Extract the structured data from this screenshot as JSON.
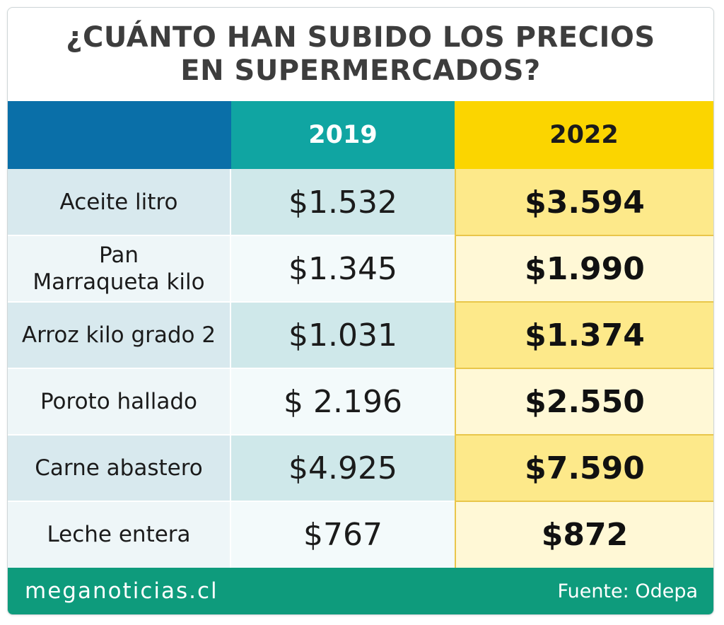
{
  "colors": {
    "header_blank": "#0a6fa8",
    "header_2019": "#10a5a2",
    "header_2022": "#fbd500",
    "label_row_dark": "#d8e9ee",
    "label_row_light": "#eef6f8",
    "col2019_row_dark": "#cfe8ea",
    "col2019_row_light": "#f3fafb",
    "col2022_row_dark": "#fde98a",
    "col2022_row_light": "#fff8d6",
    "footer": "#0e9b7c"
  },
  "title_lines": [
    "¿CUÁNTO HAN SUBIDO LOS PRECIOS",
    "EN SUPERMERCADOS?"
  ],
  "chart_data": {
    "type": "table",
    "columns": [
      "",
      "2019",
      "2022"
    ],
    "rows": [
      {
        "label_lines": [
          "Aceite litro"
        ],
        "v2019": "$1.532",
        "v2022": "$3.594"
      },
      {
        "label_lines": [
          "Pan",
          "Marraqueta kilo"
        ],
        "v2019": "$1.345",
        "v2022": "$1.990"
      },
      {
        "label_lines": [
          "Arroz kilo grado 2"
        ],
        "v2019": "$1.031",
        "v2022": "$1.374"
      },
      {
        "label_lines": [
          "Poroto hallado"
        ],
        "v2019": "$ 2.196",
        "v2022": "$2.550"
      },
      {
        "label_lines": [
          "Carne abastero"
        ],
        "v2019": "$4.925",
        "v2022": "$7.590"
      },
      {
        "label_lines": [
          "Leche entera"
        ],
        "v2019": "$767",
        "v2022": "$872"
      }
    ]
  },
  "footer": {
    "site": "meganoticias.cl",
    "source": "Fuente: Odepa"
  }
}
